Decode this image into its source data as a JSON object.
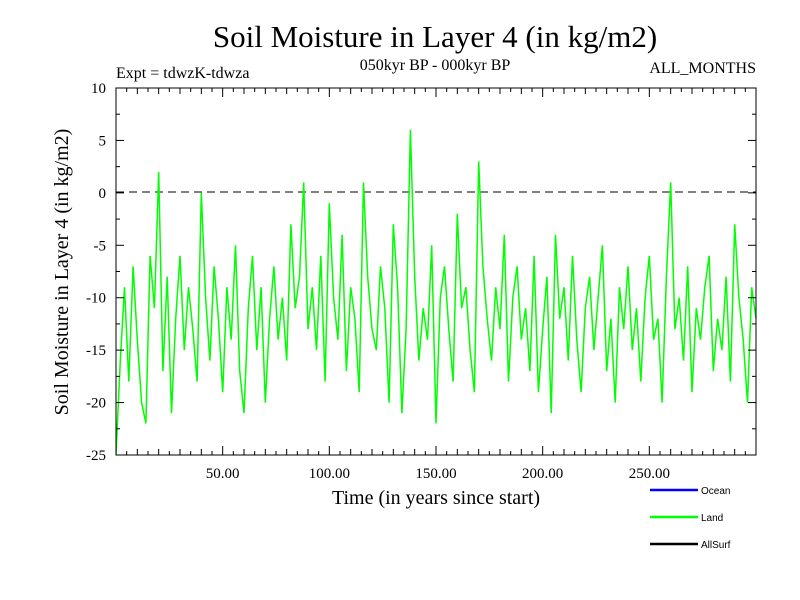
{
  "chart_data": {
    "type": "line",
    "title": "Soil Moisture in Layer 4 (in kg/m2)",
    "subtitle": "050kyr BP - 000kyr BP",
    "expt_label": "Expt = tdwzK-tdwza",
    "months_label": "ALL_MONTHS",
    "xlabel": "Time (in years since start)",
    "ylabel": "Soil Moisture in Layer 4 (in kg/m2)",
    "xlim": [
      0,
      300
    ],
    "ylim": [
      -25,
      10
    ],
    "x_ticks": [
      50,
      100,
      150,
      200,
      250
    ],
    "x_tick_labels": [
      "50.00",
      "100.00",
      "150.00",
      "200.00",
      "250.00"
    ],
    "y_ticks": [
      10,
      5,
      0,
      -5,
      -10,
      -15,
      -20,
      -25
    ],
    "y_tick_labels": [
      "10",
      "5",
      "0",
      "-5",
      "-10",
      "-15",
      "-20",
      "-25"
    ],
    "reference_line": 0,
    "legend_position": "bottom-right",
    "series": [
      {
        "name": "Ocean",
        "color": "#0000ff",
        "values": []
      },
      {
        "name": "Land",
        "color": "#00ff00",
        "x": [
          0,
          2,
          4,
          6,
          8,
          10,
          12,
          14,
          16,
          18,
          20,
          22,
          24,
          26,
          28,
          30,
          32,
          34,
          36,
          38,
          40,
          42,
          44,
          46,
          48,
          50,
          52,
          54,
          56,
          58,
          60,
          62,
          64,
          66,
          68,
          70,
          72,
          74,
          76,
          78,
          80,
          82,
          84,
          86,
          88,
          90,
          92,
          94,
          96,
          98,
          100,
          102,
          104,
          106,
          108,
          110,
          112,
          114,
          116,
          118,
          120,
          122,
          124,
          126,
          128,
          130,
          132,
          134,
          136,
          138,
          140,
          142,
          144,
          146,
          148,
          150,
          152,
          154,
          156,
          158,
          160,
          162,
          164,
          166,
          168,
          170,
          172,
          174,
          176,
          178,
          180,
          182,
          184,
          186,
          188,
          190,
          192,
          194,
          196,
          198,
          200,
          202,
          204,
          206,
          208,
          210,
          212,
          214,
          216,
          218,
          220,
          222,
          224,
          226,
          228,
          230,
          232,
          234,
          236,
          238,
          240,
          242,
          244,
          246,
          248,
          250,
          252,
          254,
          256,
          258,
          260,
          262,
          264,
          266,
          268,
          270,
          272,
          274,
          276,
          278,
          280,
          282,
          284,
          286,
          288,
          290,
          292,
          294,
          296,
          298,
          300
        ],
        "values": [
          -25,
          -16,
          -9,
          -18,
          -7,
          -14,
          -20,
          -22,
          -6,
          -11,
          2,
          -17,
          -8,
          -21,
          -12,
          -6,
          -15,
          -9,
          -13,
          -18,
          0,
          -10,
          -16,
          -7,
          -12,
          -19,
          -9,
          -14,
          -5,
          -17,
          -21,
          -11,
          -6,
          -15,
          -9,
          -20,
          -12,
          -7,
          -14,
          -10,
          -16,
          -3,
          -11,
          -8,
          1,
          -13,
          -9,
          -15,
          -6,
          -18,
          -1,
          -10,
          -14,
          -4,
          -17,
          -9,
          -12,
          -19,
          1,
          -8,
          -13,
          -15,
          -7,
          -11,
          -20,
          -3,
          -9,
          -21,
          -13,
          6,
          -8,
          -16,
          -11,
          -14,
          -5,
          -22,
          -10,
          -7,
          -13,
          -18,
          -2,
          -11,
          -9,
          -15,
          -19,
          3,
          -7,
          -12,
          -16,
          -9,
          -13,
          -4,
          -18,
          -10,
          -7,
          -14,
          -11,
          -17,
          -6,
          -19,
          -13,
          -8,
          -21,
          -4,
          -12,
          -9,
          -16,
          -6,
          -14,
          -19,
          -11,
          -8,
          -15,
          -10,
          -5,
          -17,
          -12,
          -20,
          -9,
          -13,
          -7,
          -15,
          -11,
          -18,
          -10,
          -6,
          -14,
          -12,
          -20,
          -8,
          1,
          -13,
          -10,
          -16,
          -7,
          -19,
          -11,
          -14,
          -9,
          -6,
          -17,
          -12,
          -15,
          -8,
          -18,
          -3,
          -10,
          -14,
          -20,
          -9,
          -12
        ]
      },
      {
        "name": "AllSurf",
        "color": "#000000",
        "values": []
      }
    ]
  }
}
